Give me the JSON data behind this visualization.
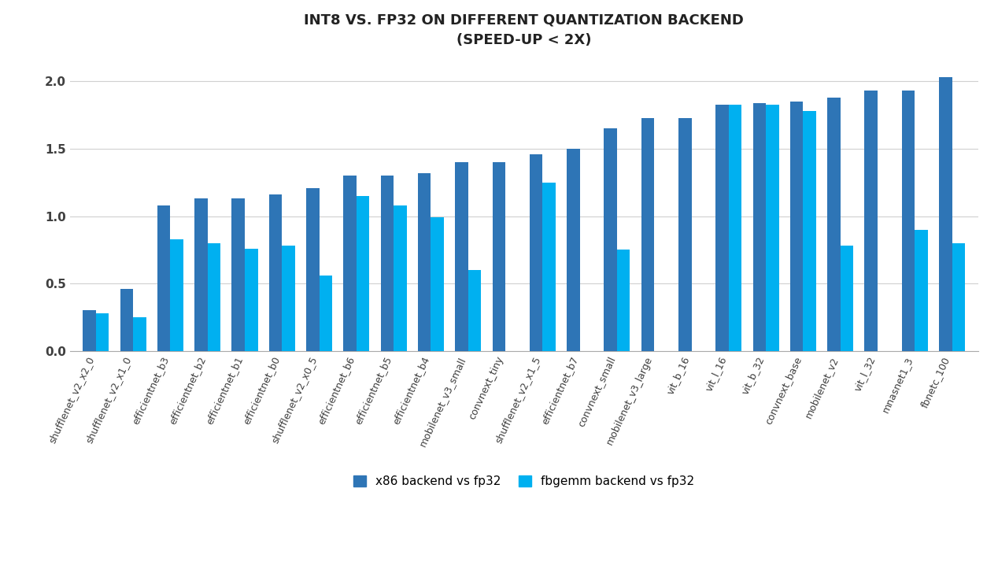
{
  "title": "INT8 VS. FP32 ON DIFFERENT QUANTIZATION BACKEND\n(SPEED-UP < 2X)",
  "categories": [
    "shufflenet_v2_x2_0",
    "shufflenet_v2_x1_0",
    "efficientnet_b3",
    "efficientnet_b2",
    "efficientnet_b1",
    "efficientnet_b0",
    "shufflenet_v2_x0_5",
    "efficientnet_b6",
    "efficientnet_b5",
    "efficientnet_b4",
    "mobilenet_v3_small",
    "convnext_tiny",
    "shufflenet_v2_x1_5",
    "efficientnet_b7",
    "convnext_small",
    "mobilenet_v3_large",
    "vit_b_16",
    "vit_l_16",
    "vit_b_32",
    "convnext_base",
    "mobilenet_v2",
    "vit_l_32",
    "mnasnet1_3",
    "fbnetc_100"
  ],
  "x86_values": [
    0.3,
    0.46,
    1.08,
    1.13,
    1.13,
    1.16,
    1.21,
    1.3,
    1.3,
    1.32,
    1.4,
    1.4,
    1.46,
    1.5,
    1.65,
    1.73,
    1.73,
    1.83,
    1.84,
    1.85,
    1.88,
    1.93,
    1.93,
    2.03
  ],
  "fbgemm_values": [
    0.28,
    0.25,
    0.83,
    0.8,
    0.76,
    0.78,
    0.56,
    1.15,
    1.08,
    0.99,
    0.6,
    null,
    1.25,
    null,
    0.75,
    null,
    null,
    1.83,
    1.83,
    1.78,
    0.78,
    null,
    0.9,
    0.8
  ],
  "x86_color": "#2e75b6",
  "fbgemm_color": "#00b0f0",
  "background_color": "#ffffff",
  "legend_x86": "x86 backend vs fp32",
  "legend_fbgemm": "fbgemm backend vs fp32",
  "ylim": [
    0,
    2.1
  ],
  "yticks": [
    0.0,
    0.5,
    1.0,
    1.5,
    2.0
  ],
  "title_fontsize": 13,
  "tick_fontsize": 9,
  "legend_fontsize": 11,
  "bar_width": 0.35,
  "label_rotation": 65
}
